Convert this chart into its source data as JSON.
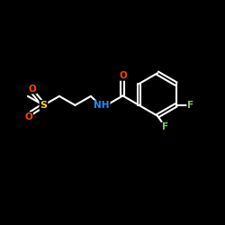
{
  "bg_color": "#000000",
  "bond_color": "#ffffff",
  "atom_colors": {
    "O": "#ff4500",
    "N": "#1e90ff",
    "S": "#ffd700",
    "F": "#7ccc6c",
    "C": "#ffffff"
  },
  "figsize": [
    2.5,
    2.5
  ],
  "dpi": 100
}
